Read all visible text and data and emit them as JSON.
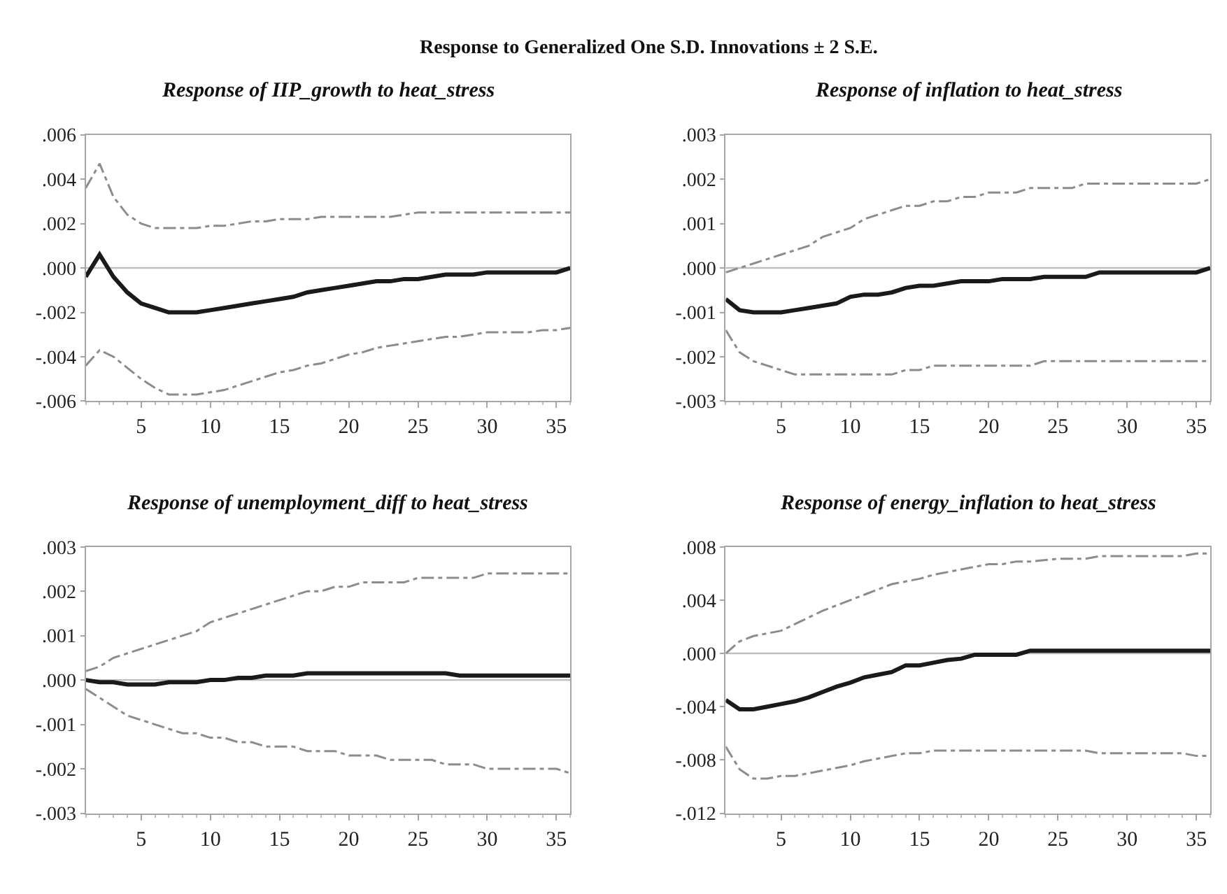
{
  "chart_data": [
    {
      "type": "line",
      "title": "Response of IIP_growth to heat_stress",
      "annotations": [
        "Response to Generalized One S.D. Innovations ± 2 S.E."
      ],
      "grid": false,
      "marker": "none",
      "x": [
        1,
        2,
        3,
        4,
        5,
        6,
        7,
        8,
        9,
        10,
        11,
        12,
        13,
        14,
        15,
        16,
        17,
        18,
        19,
        20,
        21,
        22,
        23,
        24,
        25,
        26,
        27,
        28,
        29,
        30,
        31,
        32,
        33,
        34,
        35,
        36
      ],
      "xlim": [
        1,
        36
      ],
      "xticks": [
        5,
        10,
        15,
        20,
        25,
        30,
        35
      ],
      "ylim": [
        -0.006,
        0.006
      ],
      "yticks": [
        {
          "value": -0.006,
          "label": "-.006"
        },
        {
          "value": -0.004,
          "label": "-.004"
        },
        {
          "value": -0.002,
          "label": "-.002"
        },
        {
          "value": 0,
          "label": ".000"
        },
        {
          "value": 0.002,
          "label": ".002"
        },
        {
          "value": 0.004,
          "label": ".004"
        },
        {
          "value": 0.006,
          "label": ".006"
        }
      ],
      "ref_lines": [
        {
          "axis": "y",
          "value": 0,
          "color": "#bfbfbf"
        }
      ],
      "series": [
        {
          "color": "#8c8c8c",
          "line_style": "dashed",
          "values": [
            0.0036,
            0.0047,
            0.0032,
            0.0024,
            0.002,
            0.0018,
            0.0018,
            0.0018,
            0.0018,
            0.0019,
            0.0019,
            0.002,
            0.0021,
            0.0021,
            0.0022,
            0.0022,
            0.0022,
            0.0023,
            0.0023,
            0.0023,
            0.0023,
            0.0023,
            0.0023,
            0.0024,
            0.0025,
            0.0025,
            0.0025,
            0.0025,
            0.0025,
            0.0025,
            0.0025,
            0.0025,
            0.0025,
            0.0025,
            0.0025,
            0.0025
          ]
        },
        {
          "color": "#8c8c8c",
          "line_style": "dashed",
          "values": [
            -0.0044,
            -0.0037,
            -0.004,
            -0.0045,
            -0.005,
            -0.0054,
            -0.0057,
            -0.0057,
            -0.0057,
            -0.0056,
            -0.0055,
            -0.0053,
            -0.0051,
            -0.0049,
            -0.0047,
            -0.0046,
            -0.0044,
            -0.0043,
            -0.0041,
            -0.0039,
            -0.0038,
            -0.0036,
            -0.0035,
            -0.0034,
            -0.0033,
            -0.0032,
            -0.0031,
            -0.0031,
            -0.003,
            -0.0029,
            -0.0029,
            -0.0029,
            -0.0029,
            -0.0028,
            -0.0028,
            -0.0027
          ]
        },
        {
          "color": "#1a1a1a",
          "line_style": "solid",
          "values": [
            -0.0004,
            0.0006,
            -0.0004,
            -0.0011,
            -0.0016,
            -0.0018,
            -0.002,
            -0.002,
            -0.002,
            -0.0019,
            -0.0018,
            -0.0017,
            -0.0016,
            -0.0015,
            -0.0014,
            -0.0013,
            -0.0011,
            -0.001,
            -0.0009,
            -0.0008,
            -0.0007,
            -0.0006,
            -0.0006,
            -0.0005,
            -0.0005,
            -0.0004,
            -0.0003,
            -0.0003,
            -0.0003,
            -0.0002,
            -0.0002,
            -0.0002,
            -0.0002,
            -0.0002,
            -0.0002,
            0.0
          ]
        }
      ]
    },
    {
      "type": "line",
      "title": "Response of inflation to heat_stress",
      "grid": false,
      "marker": "none",
      "x": [
        1,
        2,
        3,
        4,
        5,
        6,
        7,
        8,
        9,
        10,
        11,
        12,
        13,
        14,
        15,
        16,
        17,
        18,
        19,
        20,
        21,
        22,
        23,
        24,
        25,
        26,
        27,
        28,
        29,
        30,
        31,
        32,
        33,
        34,
        35,
        36
      ],
      "xlim": [
        1,
        36
      ],
      "xticks": [
        5,
        10,
        15,
        20,
        25,
        30,
        35
      ],
      "ylim": [
        -0.003,
        0.003
      ],
      "yticks": [
        {
          "value": -0.003,
          "label": "-.003"
        },
        {
          "value": -0.002,
          "label": "-.002"
        },
        {
          "value": -0.001,
          "label": "-.001"
        },
        {
          "value": 0,
          "label": ".000"
        },
        {
          "value": 0.001,
          "label": ".001"
        },
        {
          "value": 0.002,
          "label": ".002"
        },
        {
          "value": 0.003,
          "label": ".003"
        }
      ],
      "ref_lines": [
        {
          "axis": "y",
          "value": 0,
          "color": "#bfbfbf"
        }
      ],
      "series": [
        {
          "color": "#8c8c8c",
          "line_style": "dashed",
          "values": [
            -0.0001,
            0.0,
            0.0001,
            0.0002,
            0.0003,
            0.0004,
            0.0005,
            0.0007,
            0.0008,
            0.0009,
            0.0011,
            0.0012,
            0.0013,
            0.0014,
            0.0014,
            0.0015,
            0.0015,
            0.0016,
            0.0016,
            0.0017,
            0.0017,
            0.0017,
            0.0018,
            0.0018,
            0.0018,
            0.0018,
            0.0019,
            0.0019,
            0.0019,
            0.0019,
            0.0019,
            0.0019,
            0.0019,
            0.0019,
            0.0019,
            0.002
          ]
        },
        {
          "color": "#8c8c8c",
          "line_style": "dashed",
          "values": [
            -0.0014,
            -0.0019,
            -0.0021,
            -0.0022,
            -0.0023,
            -0.0024,
            -0.0024,
            -0.0024,
            -0.0024,
            -0.0024,
            -0.0024,
            -0.0024,
            -0.0024,
            -0.0023,
            -0.0023,
            -0.0022,
            -0.0022,
            -0.0022,
            -0.0022,
            -0.0022,
            -0.0022,
            -0.0022,
            -0.0022,
            -0.0021,
            -0.0021,
            -0.0021,
            -0.0021,
            -0.0021,
            -0.0021,
            -0.0021,
            -0.0021,
            -0.0021,
            -0.0021,
            -0.0021,
            -0.0021,
            -0.0021
          ]
        },
        {
          "color": "#1a1a1a",
          "line_style": "solid",
          "values": [
            -0.0007,
            -0.00095,
            -0.001,
            -0.001,
            -0.001,
            -0.00095,
            -0.0009,
            -0.00085,
            -0.0008,
            -0.00065,
            -0.0006,
            -0.0006,
            -0.00055,
            -0.00045,
            -0.0004,
            -0.0004,
            -0.00035,
            -0.0003,
            -0.0003,
            -0.0003,
            -0.00025,
            -0.00025,
            -0.00025,
            -0.0002,
            -0.0002,
            -0.0002,
            -0.0002,
            -0.0001,
            -0.0001,
            -0.0001,
            -0.0001,
            -0.0001,
            -0.0001,
            -0.0001,
            -0.0001,
            0.0
          ]
        }
      ]
    },
    {
      "type": "line",
      "title": "Response of unemployment_diff to heat_stress",
      "grid": false,
      "marker": "none",
      "x": [
        1,
        2,
        3,
        4,
        5,
        6,
        7,
        8,
        9,
        10,
        11,
        12,
        13,
        14,
        15,
        16,
        17,
        18,
        19,
        20,
        21,
        22,
        23,
        24,
        25,
        26,
        27,
        28,
        29,
        30,
        31,
        32,
        33,
        34,
        35,
        36
      ],
      "xlim": [
        1,
        36
      ],
      "xticks": [
        5,
        10,
        15,
        20,
        25,
        30,
        35
      ],
      "ylim": [
        -0.003,
        0.003
      ],
      "yticks": [
        {
          "value": -0.003,
          "label": "-.003"
        },
        {
          "value": -0.002,
          "label": "-.002"
        },
        {
          "value": -0.001,
          "label": "-.001"
        },
        {
          "value": 0,
          "label": ".000"
        },
        {
          "value": 0.001,
          "label": ".001"
        },
        {
          "value": 0.002,
          "label": ".002"
        },
        {
          "value": 0.003,
          "label": ".003"
        }
      ],
      "ref_lines": [
        {
          "axis": "y",
          "value": 0,
          "color": "#bfbfbf"
        }
      ],
      "series": [
        {
          "color": "#8c8c8c",
          "line_style": "dashed",
          "values": [
            0.0002,
            0.0003,
            0.0005,
            0.0006,
            0.0007,
            0.0008,
            0.0009,
            0.001,
            0.0011,
            0.0013,
            0.0014,
            0.0015,
            0.0016,
            0.0017,
            0.0018,
            0.0019,
            0.002,
            0.002,
            0.0021,
            0.0021,
            0.0022,
            0.0022,
            0.0022,
            0.0022,
            0.0023,
            0.0023,
            0.0023,
            0.0023,
            0.0023,
            0.0024,
            0.0024,
            0.0024,
            0.0024,
            0.0024,
            0.0024,
            0.0024
          ]
        },
        {
          "color": "#8c8c8c",
          "line_style": "dashed",
          "values": [
            -0.0002,
            -0.0004,
            -0.0006,
            -0.0008,
            -0.0009,
            -0.001,
            -0.0011,
            -0.0012,
            -0.0012,
            -0.0013,
            -0.0013,
            -0.0014,
            -0.0014,
            -0.0015,
            -0.0015,
            -0.0015,
            -0.0016,
            -0.0016,
            -0.0016,
            -0.0017,
            -0.0017,
            -0.0017,
            -0.0018,
            -0.0018,
            -0.0018,
            -0.0018,
            -0.0019,
            -0.0019,
            -0.0019,
            -0.002,
            -0.002,
            -0.002,
            -0.002,
            -0.002,
            -0.002,
            -0.0021
          ]
        },
        {
          "color": "#1a1a1a",
          "line_style": "solid",
          "values": [
            0.0,
            -5e-05,
            -5e-05,
            -0.0001,
            -0.0001,
            -0.0001,
            -5e-05,
            -5e-05,
            -5e-05,
            0.0,
            0.0,
            5e-05,
            5e-05,
            0.0001,
            0.0001,
            0.0001,
            0.00015,
            0.00015,
            0.00015,
            0.00015,
            0.00015,
            0.00015,
            0.00015,
            0.00015,
            0.00015,
            0.00015,
            0.00015,
            0.0001,
            0.0001,
            0.0001,
            0.0001,
            0.0001,
            0.0001,
            0.0001,
            0.0001,
            0.0001
          ]
        }
      ]
    },
    {
      "type": "line",
      "title": "Response of energy_inflation to heat_stress",
      "grid": false,
      "marker": "none",
      "x": [
        1,
        2,
        3,
        4,
        5,
        6,
        7,
        8,
        9,
        10,
        11,
        12,
        13,
        14,
        15,
        16,
        17,
        18,
        19,
        20,
        21,
        22,
        23,
        24,
        25,
        26,
        27,
        28,
        29,
        30,
        31,
        32,
        33,
        34,
        35,
        36
      ],
      "xlim": [
        1,
        36
      ],
      "xticks": [
        5,
        10,
        15,
        20,
        25,
        30,
        35
      ],
      "ylim": [
        -0.012,
        0.008
      ],
      "yticks": [
        {
          "value": -0.012,
          "label": "-.012"
        },
        {
          "value": -0.008,
          "label": "-.008"
        },
        {
          "value": -0.004,
          "label": "-.004"
        },
        {
          "value": 0,
          "label": ".000"
        },
        {
          "value": 0.004,
          "label": ".004"
        },
        {
          "value": 0.008,
          "label": ".008"
        }
      ],
      "ref_lines": [
        {
          "axis": "y",
          "value": 0,
          "color": "#bfbfbf"
        }
      ],
      "series": [
        {
          "color": "#8c8c8c",
          "line_style": "dashed",
          "values": [
            0.0,
            0.0009,
            0.0013,
            0.0015,
            0.0017,
            0.0022,
            0.0027,
            0.0032,
            0.0036,
            0.004,
            0.0044,
            0.0048,
            0.0052,
            0.0054,
            0.0056,
            0.0059,
            0.0061,
            0.0063,
            0.0065,
            0.0067,
            0.0067,
            0.0069,
            0.0069,
            0.007,
            0.0071,
            0.0071,
            0.0071,
            0.0073,
            0.0073,
            0.0073,
            0.0073,
            0.0073,
            0.0073,
            0.0073,
            0.0075,
            0.0075
          ]
        },
        {
          "color": "#8c8c8c",
          "line_style": "dashed",
          "values": [
            -0.007,
            -0.0087,
            -0.0094,
            -0.0094,
            -0.0092,
            -0.0092,
            -0.009,
            -0.0088,
            -0.0086,
            -0.0084,
            -0.0081,
            -0.0079,
            -0.0077,
            -0.0075,
            -0.0075,
            -0.0073,
            -0.0073,
            -0.0073,
            -0.0073,
            -0.0073,
            -0.0073,
            -0.0073,
            -0.0073,
            -0.0073,
            -0.0073,
            -0.0073,
            -0.0073,
            -0.0075,
            -0.0075,
            -0.0075,
            -0.0075,
            -0.0075,
            -0.0075,
            -0.0075,
            -0.0077,
            -0.0077
          ]
        },
        {
          "color": "#1a1a1a",
          "line_style": "solid",
          "values": [
            -0.0035,
            -0.0042,
            -0.0042,
            -0.004,
            -0.0038,
            -0.0036,
            -0.0033,
            -0.0029,
            -0.0025,
            -0.0022,
            -0.0018,
            -0.0016,
            -0.0014,
            -0.0009,
            -0.0009,
            -0.0007,
            -0.0005,
            -0.0004,
            -0.0001,
            -0.0001,
            -0.0001,
            -0.0001,
            0.0002,
            0.0002,
            0.0002,
            0.0002,
            0.0002,
            0.0002,
            0.0002,
            0.0002,
            0.0002,
            0.0002,
            0.0002,
            0.0002,
            0.0002,
            0.0002
          ]
        }
      ]
    }
  ]
}
